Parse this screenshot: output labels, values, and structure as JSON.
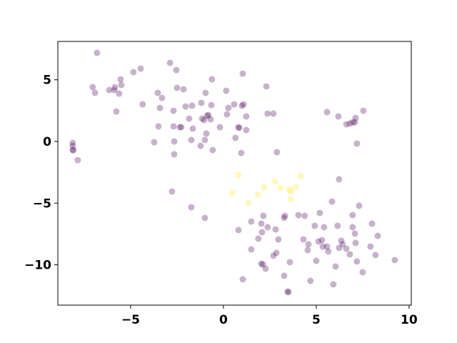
{
  "chart_data": {
    "type": "scatter",
    "xlim": [
      -8.92,
      10.12
    ],
    "ylim": [
      -13.27,
      8.11
    ],
    "xticks": [
      {
        "value": -5,
        "label": "−5"
      },
      0,
      5,
      10
    ],
    "yticks": [
      5,
      0,
      {
        "value": -5,
        "label": "−5"
      },
      {
        "value": -10,
        "label": "−10"
      }
    ],
    "opacity": 0.3,
    "series": [
      {
        "color": "#440154",
        "x": [
          -6.81,
          -7.04,
          -6.92,
          -6.15,
          -5.88,
          -5.85,
          -5.54,
          -5.5,
          -5.62,
          -5.77,
          -4.85,
          -4.46,
          -4.35,
          -3.54,
          -3.31,
          -3.42,
          -3.5,
          -3.73,
          -2.88,
          -2.54,
          -2.5,
          -2.15,
          -2.69,
          -2.69,
          -2.65,
          -2.35,
          -2.27,
          -2.65,
          -2.04,
          -1.85,
          -1.69,
          -1.65,
          -1.73,
          -1.19,
          -1.15,
          -1.04,
          -0.96,
          -0.92,
          -1.0,
          -1.23,
          -0.88,
          -0.81,
          -0.69,
          -0.62,
          -0.65,
          -0.58,
          -0.19,
          0.15,
          0.19,
          0.27,
          0.58,
          0.65,
          0.81,
          1.0,
          0.85,
          1.04,
          1.08,
          1.23,
          1.23,
          0.96,
          2.31,
          2.38,
          2.69,
          2.88,
          5.58,
          6.19,
          6.62,
          6.81,
          6.96,
          7.12,
          7.08,
          7.19,
          7.54,
          6.23,
          -8.12,
          -8.12,
          -8.08,
          -8.12,
          -7.85,
          -2.77,
          -1.73,
          -1.0,
          0.81,
          1.5,
          1.5,
          2.04,
          2.15,
          1.88,
          2.08,
          2.38,
          2.81,
          3.31,
          2.96,
          2.69,
          2.85,
          3.58,
          3.27,
          4.04,
          4.38,
          4.31,
          4.58,
          4.54,
          4.92,
          5.12,
          5.19,
          5.31,
          5.35,
          5.42,
          5.58,
          5.65,
          5.85,
          6.15,
          6.23,
          6.42,
          6.35,
          6.62,
          6.81,
          6.96,
          6.96,
          7.08,
          7.31,
          7.12,
          7.19,
          8.0,
          7.92,
          8.31,
          8.19,
          7.5,
          9.23,
          2.04,
          2.12,
          2.27,
          1.04,
          3.5,
          3.27,
          3.46,
          4.69,
          5.0,
          6.04,
          5.92
        ],
        "y": [
          7.18,
          4.4,
          3.94,
          4.17,
          4.17,
          4.4,
          5.04,
          4.58,
          3.88,
          2.43,
          5.62,
          5.91,
          3.01,
          3.94,
          3.53,
          2.72,
          1.22,
          -0.06,
          6.37,
          5.79,
          4.35,
          4.23,
          2.49,
          1.22,
          0,
          1.16,
          1.16,
          -1.04,
          2.84,
          1.85,
          2.9,
          1.04,
          0.12,
          3.13,
          1.85,
          1.74,
          3.94,
          0.64,
          0.12,
          -0.35,
          2.09,
          2.14,
          1.8,
          5.04,
          2.95,
          -0.7,
          1.16,
          4.11,
          2.2,
          2.72,
          3.01,
          0.29,
          1.16,
          2.9,
          1.1,
          5.5,
          3.01,
          2.03,
          0.93,
          -0.93,
          4.46,
          2.26,
          2.26,
          -0.87,
          2.38,
          2.03,
          1.39,
          1.45,
          1.56,
          1.91,
          1.56,
          -0.17,
          2.49,
          -3.07,
          -0.12,
          -0.35,
          -0.7,
          -0.7,
          -1.51,
          -4.06,
          -5.33,
          -6.2,
          -7.18,
          -8.75,
          -6.49,
          -6.66,
          -6.03,
          -7.88,
          -7.36,
          -6.95,
          -7.13,
          -6.03,
          -7.94,
          -9.27,
          -9.04,
          -9.79,
          -6.2,
          -5.97,
          -6.03,
          -7.94,
          -8.34,
          -8.81,
          -6.84,
          -8.11,
          -5.79,
          -8.0,
          -8.52,
          -6.95,
          -8.52,
          -8.92,
          -4.87,
          -6.84,
          -8.63,
          -8.34,
          -8.05,
          -8.69,
          -9.15,
          -5.97,
          -6.95,
          -7.47,
          -5.21,
          -8.23,
          -9.73,
          -6.66,
          -8.52,
          -7.65,
          -9.21,
          -10.6,
          -9.62,
          -9.91,
          -9.97,
          -10.31,
          -11.18,
          -12.22,
          -10.89,
          -12.17,
          -11.3,
          -9.68,
          -10.14,
          -11.59
        ]
      },
      {
        "color": "#fde725",
        "x": [
          0.81,
          0.5,
          1.35,
          1.85,
          2.19,
          2.77,
          3.08,
          3.54,
          3.62,
          3.88,
          4.15,
          3.62
        ],
        "y": [
          -2.72,
          -4.17,
          -4.98,
          -4.29,
          -3.71,
          -3.24,
          -3.77,
          -3.88,
          -4.06,
          -3.71,
          -2.78,
          -4.69
        ]
      }
    ]
  }
}
